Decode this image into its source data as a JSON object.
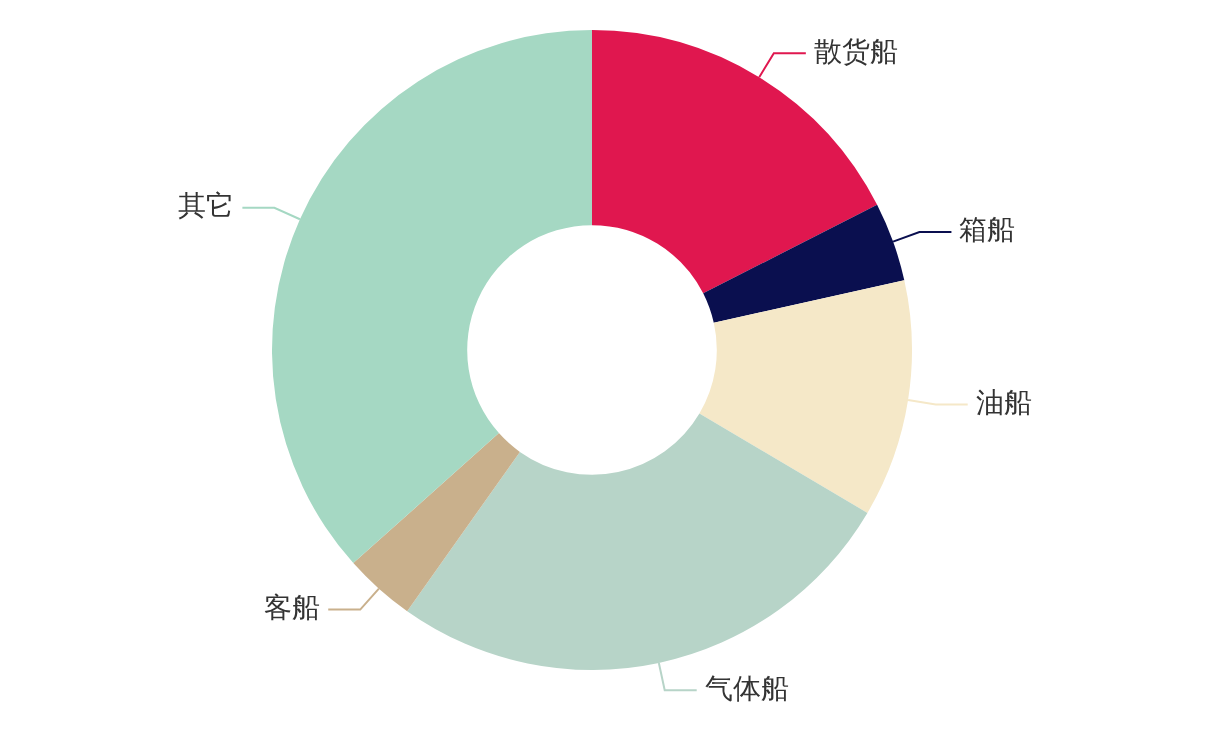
{
  "chart_data": {
    "type": "donut",
    "categories": [
      "散货船",
      "箱船",
      "油船",
      "气体船",
      "客船",
      "其它"
    ],
    "values": [
      17.5,
      4,
      12,
      26.3,
      3.6,
      36.6
    ],
    "colors": [
      "#e0174f",
      "#0a0f4f",
      "#f5e8c8",
      "#b7d4c8",
      "#c9b08c",
      "#a5d8c3"
    ],
    "legend": false
  }
}
